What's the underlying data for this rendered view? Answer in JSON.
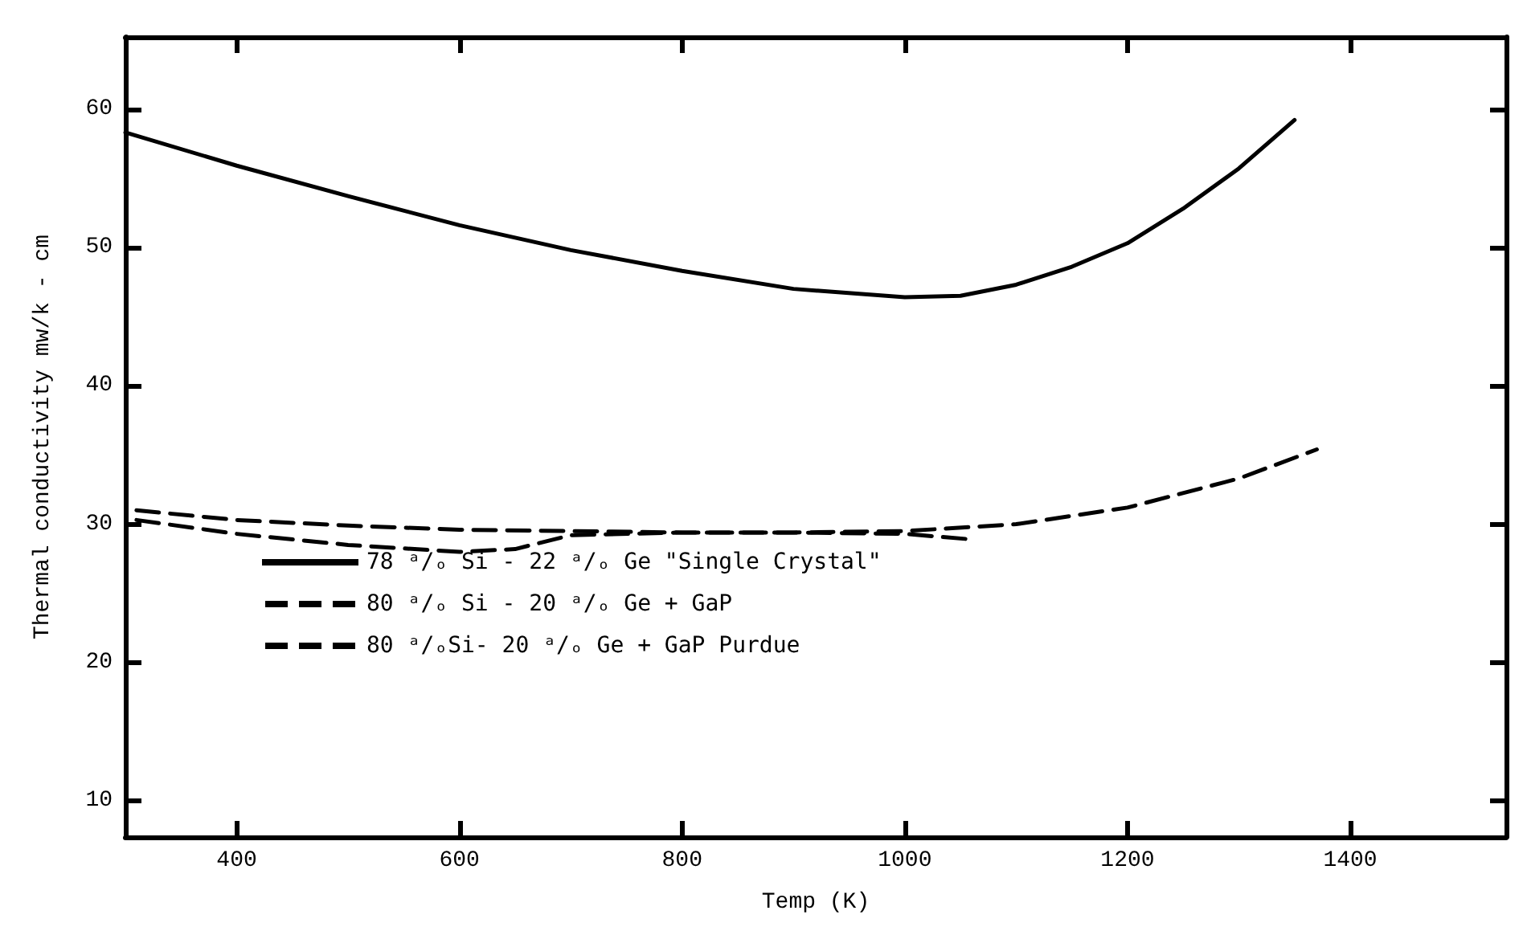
{
  "chart_data": {
    "type": "line",
    "xlabel": "Temp (K)",
    "ylabel": "Thermal conductivity mw/k - cm",
    "xlim": [
      300,
      1540
    ],
    "ylim": [
      7.4,
      65.2
    ],
    "xticks": [
      400,
      600,
      800,
      1000,
      1200,
      1400
    ],
    "yticks": [
      10,
      20,
      30,
      40,
      50,
      60
    ],
    "grid": false,
    "legend": "bottom left",
    "marker": "none",
    "series": [
      {
        "name": "78 ᵃ/ₒ Si - 22 ᵃ/ₒ Ge \"Single Crystal\"",
        "color": "#000000",
        "line_style": "solid",
        "x": [
          300,
          400,
          500,
          600,
          700,
          800,
          900,
          1000,
          1050,
          1100,
          1150,
          1200,
          1250,
          1300,
          1350
        ],
        "values": [
          58.3,
          55.9,
          53.7,
          51.6,
          49.8,
          48.3,
          47.0,
          46.4,
          46.5,
          47.3,
          48.6,
          50.3,
          52.8,
          55.7,
          59.2
        ]
      },
      {
        "name": "80 ᵃ/ₒ Si - 20 ᵃ/ₒ Ge + GaP",
        "color": "#000000",
        "line_style": "dashed",
        "x": [
          310,
          400,
          500,
          600,
          650,
          700,
          800,
          900,
          1000,
          1060
        ],
        "values": [
          30.3,
          29.3,
          28.5,
          28.0,
          28.2,
          29.2,
          29.4,
          29.4,
          29.3,
          28.9
        ]
      },
      {
        "name": "80 ᵃ/ₒSi- 20 ᵃ/ₒ Ge + GaP Purdue",
        "color": "#000000",
        "line_style": "dashed",
        "x": [
          310,
          400,
          500,
          600,
          700,
          800,
          900,
          1000,
          1100,
          1200,
          1300,
          1370
        ],
        "values": [
          31.0,
          30.3,
          29.9,
          29.6,
          29.5,
          29.4,
          29.4,
          29.5,
          30.0,
          31.2,
          33.3,
          35.4
        ]
      }
    ]
  }
}
